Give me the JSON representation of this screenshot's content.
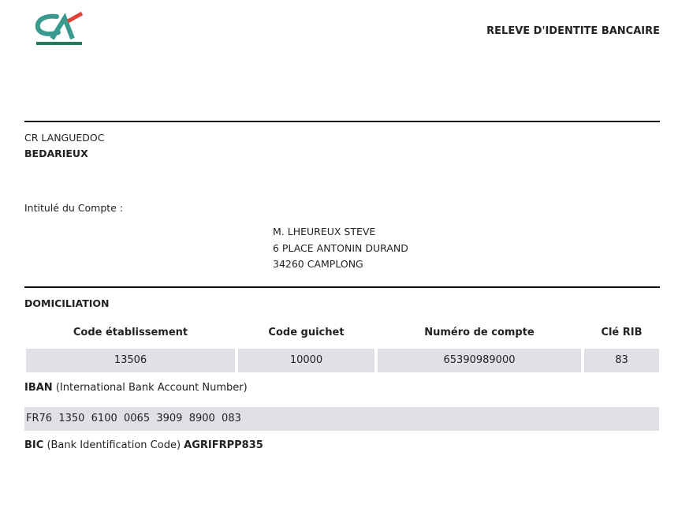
{
  "header": {
    "logo_text": "CA",
    "title": "RELEVE D'IDENTITE BANCAIRE"
  },
  "bank": {
    "region": "CR LANGUEDOC",
    "branch": "BEDARIEUX"
  },
  "account": {
    "label": "Intitulé du Compte :",
    "holder_lines": [
      "M. LHEUREUX STEVE",
      "6 PLACE ANTONIN DURAND",
      "34260 CAMPLONG"
    ]
  },
  "domiciliation": {
    "title": "DOMICILIATION",
    "columns": [
      "Code établissement",
      "Code guichet",
      "Numéro de compte",
      "Clé RIB"
    ],
    "values": [
      "13506",
      "10000",
      "65390989000",
      "83"
    ]
  },
  "iban": {
    "label": "IBAN",
    "desc": "(International Bank Account Number)",
    "value": "FR76  1350  6100  0065  3909  8900  083"
  },
  "bic": {
    "label": "BIC",
    "desc": "(Bank Identification Code)",
    "value": "AGRIFRPP835"
  },
  "colors": {
    "logo_teal": "#3a9a8f",
    "logo_green": "#1f7a55",
    "logo_red": "#e2413a",
    "cell_bg": "#dfe1e6"
  }
}
